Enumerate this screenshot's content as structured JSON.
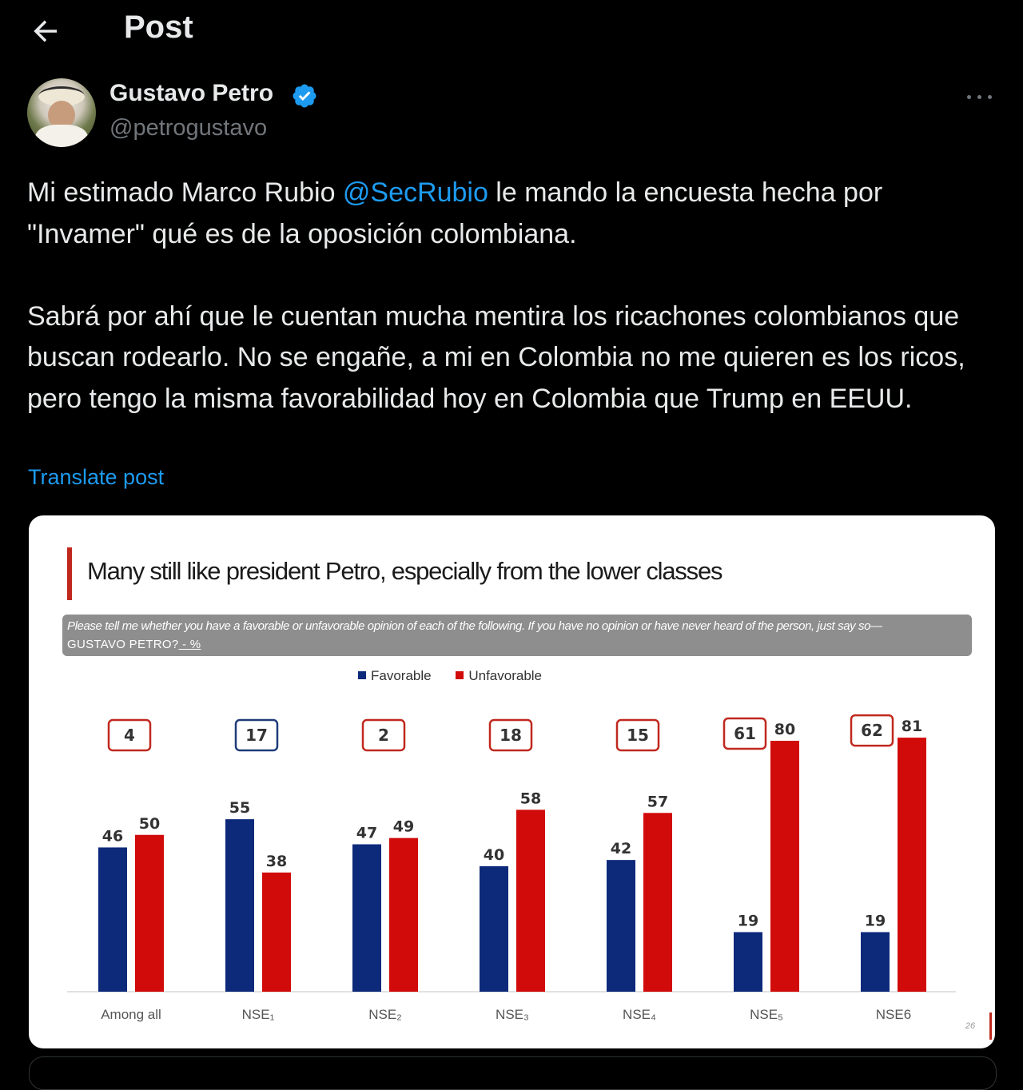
{
  "header": {
    "title": "Post",
    "back_icon": "arrow-left-icon"
  },
  "author": {
    "name": "Gustavo Petro",
    "handle": "@petrogustavo",
    "verified": true,
    "verified_color": "#1d9bf0"
  },
  "post": {
    "text_before": "Mi estimado Marco Rubio ",
    "mention": "@SecRubio",
    "text_after": " le mando la encuesta hecha por \"Invamer\" qué es de la oposición colombiana.\n\nSabrá por ahí que le cuentan mucha mentira los ricachones colombianos que buscan rodearlo. No se engañe, a mi en Colombia no me quieren es los ricos, pero tengo la misma favorabilidad hoy en Colombia que Trump en EEUU.",
    "translate_label": "Translate post",
    "link_color": "#1d9bf0"
  },
  "media": {
    "question": "Please tell me whether you have a favorable or unfavorable opinion of each of the following.  If you have no opinion or have never heard of the person, just say so—",
    "question_subject": "GUSTAVO PETRO?",
    "question_unit": " - %",
    "page_number": "26"
  },
  "chart_data": {
    "type": "bar",
    "title": "Many still like president Petro, especially from the lower classes",
    "categories": [
      "Among all",
      "NSE₁",
      "NSE₂",
      "NSE₃",
      "NSE₄",
      "NSE₅",
      "NSE6"
    ],
    "series": [
      {
        "name": "Favorable",
        "color": "#0d2a7a",
        "values": [
          46,
          55,
          47,
          40,
          42,
          19,
          19
        ]
      },
      {
        "name": "Unfavorable",
        "color": "#d10a0a",
        "values": [
          50,
          38,
          49,
          58,
          57,
          80,
          81
        ]
      }
    ],
    "net_difference": [
      "4",
      "17",
      "2",
      "18",
      "15",
      "61",
      "62"
    ],
    "net_highlight": [
      false,
      true,
      false,
      false,
      false,
      false,
      false
    ],
    "ylim": [
      0,
      90
    ],
    "legend_position": "top-center",
    "grid": false
  }
}
